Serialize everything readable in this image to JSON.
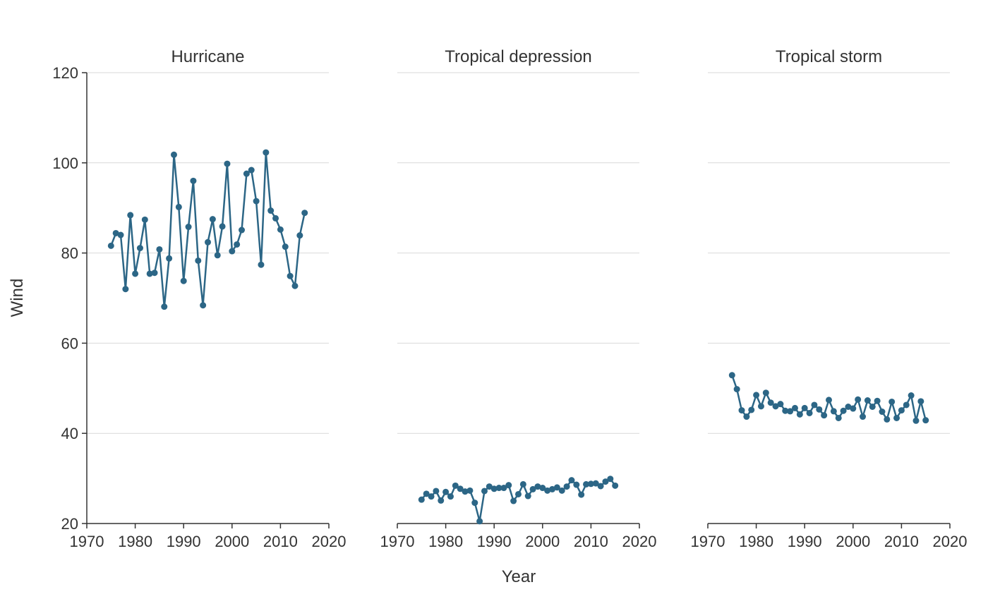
{
  "chart_data": {
    "type": "line",
    "xlabel": "Year",
    "ylabel": "Wind",
    "xlim": [
      1970,
      2020
    ],
    "ylim": [
      20,
      120
    ],
    "x_ticks": [
      1970,
      1980,
      1990,
      2000,
      2010,
      2020
    ],
    "y_ticks": [
      20,
      40,
      60,
      80,
      100,
      120
    ],
    "grid": "horizontal",
    "colors": {
      "series": "#2c6686",
      "grid": "#d9d9d9",
      "axis": "#333333",
      "text": "#333333"
    },
    "facets": [
      {
        "title": "Hurricane",
        "x": [
          1975,
          1976,
          1977,
          1978,
          1979,
          1980,
          1981,
          1982,
          1983,
          1984,
          1985,
          1986,
          1987,
          1988,
          1989,
          1990,
          1991,
          1992,
          1993,
          1994,
          1995,
          1996,
          1997,
          1998,
          1999,
          2000,
          2001,
          2002,
          2003,
          2004,
          2005,
          2006,
          2007,
          2008,
          2009,
          2010,
          2011,
          2012,
          2013,
          2014,
          2015
        ],
        "y": [
          81.6,
          84.4,
          84.0,
          72.0,
          88.4,
          75.4,
          81.1,
          87.4,
          75.4,
          75.6,
          80.8,
          68.1,
          78.8,
          101.8,
          90.2,
          73.8,
          85.8,
          96.0,
          78.3,
          68.4,
          82.4,
          87.5,
          79.5,
          85.9,
          99.8,
          80.4,
          81.9,
          85.1,
          97.6,
          98.4,
          91.5,
          77.4,
          102.3,
          89.4,
          87.7,
          85.2,
          81.4,
          74.9,
          72.7,
          83.9,
          88.9
        ]
      },
      {
        "title": "Tropical depression",
        "x": [
          1975,
          1976,
          1977,
          1978,
          1979,
          1980,
          1981,
          1982,
          1983,
          1984,
          1985,
          1986,
          1987,
          1988,
          1989,
          1990,
          1991,
          1992,
          1993,
          1994,
          1995,
          1996,
          1997,
          1998,
          1999,
          2000,
          2001,
          2002,
          2003,
          2004,
          2005,
          2006,
          2007,
          2008,
          2009,
          2010,
          2011,
          2012,
          2013,
          2014,
          2015
        ],
        "y": [
          25.3,
          26.6,
          26.0,
          27.2,
          25.1,
          27.0,
          26.0,
          28.4,
          27.7,
          27.1,
          27.3,
          24.6,
          20.5,
          27.2,
          28.2,
          27.7,
          27.9,
          27.9,
          28.5,
          25.0,
          26.5,
          28.7,
          26.1,
          27.6,
          28.2,
          27.9,
          27.3,
          27.6,
          28.0,
          27.3,
          28.2,
          29.6,
          28.6,
          26.4,
          28.7,
          28.8,
          28.9,
          28.3,
          29.3,
          29.9,
          28.4
        ]
      },
      {
        "title": "Tropical storm",
        "x": [
          1975,
          1976,
          1977,
          1978,
          1979,
          1980,
          1981,
          1982,
          1983,
          1984,
          1985,
          1986,
          1987,
          1988,
          1989,
          1990,
          1991,
          1992,
          1993,
          1994,
          1995,
          1996,
          1997,
          1998,
          1999,
          2000,
          2001,
          2002,
          2003,
          2004,
          2005,
          2006,
          2007,
          2008,
          2009,
          2010,
          2011,
          2012,
          2013,
          2014,
          2015
        ],
        "y": [
          52.9,
          49.8,
          45.1,
          43.7,
          45.2,
          48.5,
          46.0,
          49.0,
          46.8,
          46.0,
          46.5,
          45.0,
          44.9,
          45.6,
          44.2,
          45.6,
          44.5,
          46.3,
          45.3,
          44.0,
          47.4,
          44.9,
          43.4,
          45.0,
          45.9,
          45.5,
          47.5,
          43.7,
          47.3,
          45.9,
          47.2,
          44.8,
          43.1,
          47.0,
          43.4,
          45.1,
          46.3,
          48.4,
          42.8,
          47.1,
          42.9
        ]
      }
    ]
  }
}
